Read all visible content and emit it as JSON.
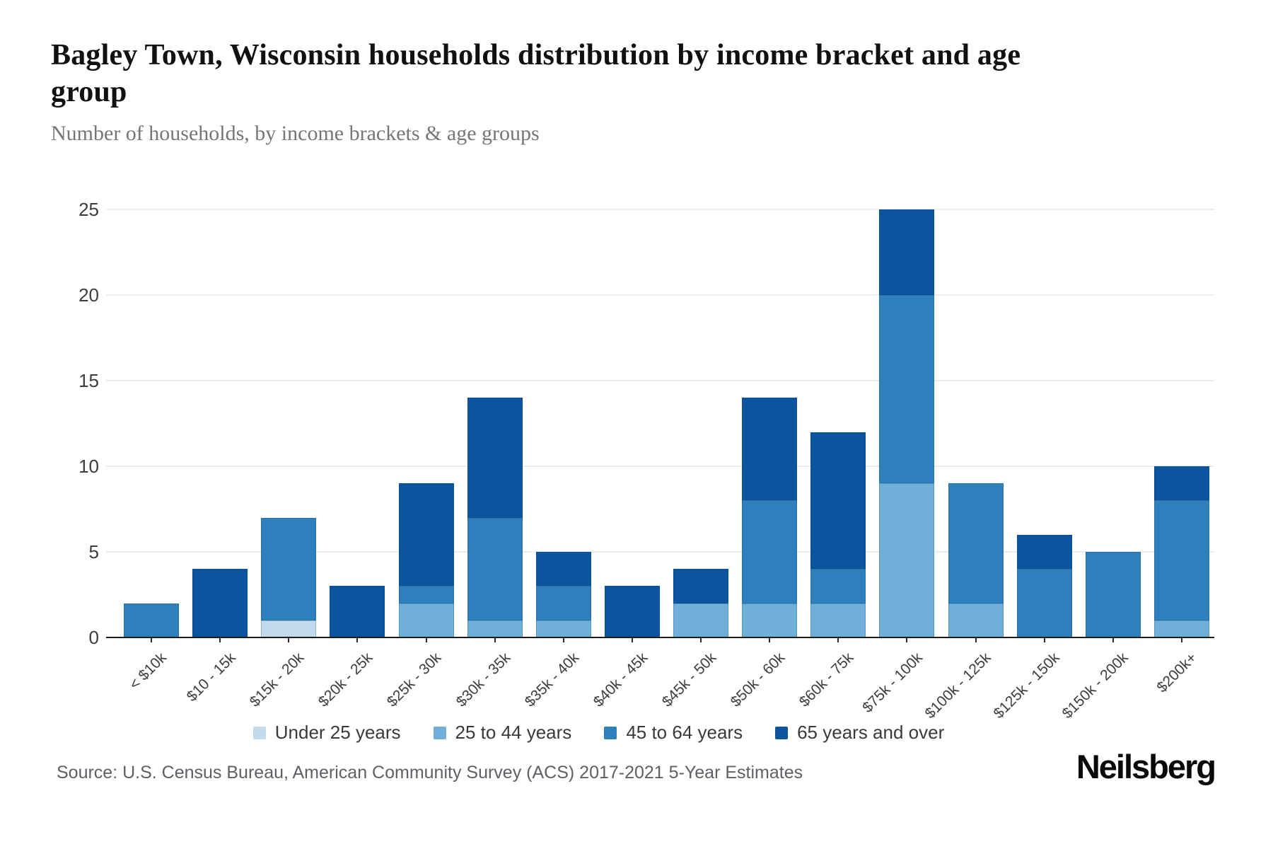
{
  "header": {
    "title": "Bagley Town, Wisconsin households distribution by income bracket and age group",
    "subtitle": "Number of households, by income brackets & age groups"
  },
  "chart_data": {
    "type": "bar",
    "stacked": true,
    "grid": true,
    "legend_position": "bottom",
    "ylim": [
      0,
      25
    ],
    "yticks": [
      0,
      5,
      10,
      15,
      20,
      25
    ],
    "categories": [
      "< $10k",
      "$10 - 15k",
      "$15k - 20k",
      "$20k - 25k",
      "$25k - 30k",
      "$30k - 35k",
      "$35k - 40k",
      "$40k - 45k",
      "$45k - 50k",
      "$50k - 60k",
      "$60k - 75k",
      "$75k - 100k",
      "$100k - 125k",
      "$125k - 150k",
      "$150k - 200k",
      "$200k+"
    ],
    "series": [
      {
        "name": "Under 25 years",
        "color": "#c3daec",
        "values": [
          0,
          0,
          1,
          0,
          0,
          0,
          0,
          0,
          0,
          0,
          0,
          0,
          0,
          0,
          0,
          0
        ]
      },
      {
        "name": "25 to 44 years",
        "color": "#6fafd8",
        "values": [
          0,
          0,
          0,
          0,
          2,
          1,
          1,
          0,
          2,
          2,
          2,
          9,
          2,
          0,
          0,
          1
        ]
      },
      {
        "name": "45 to 64 years",
        "color": "#2f7fbc",
        "values": [
          2,
          0,
          6,
          0,
          1,
          6,
          2,
          0,
          0,
          6,
          2,
          11,
          7,
          4,
          5,
          7
        ]
      },
      {
        "name": "65 years and over",
        "color": "#0c549e",
        "values": [
          0,
          4,
          0,
          3,
          6,
          7,
          2,
          3,
          2,
          6,
          8,
          5,
          0,
          2,
          0,
          2
        ]
      }
    ],
    "totals": [
      2,
      4,
      7,
      3,
      9,
      14,
      5,
      3,
      4,
      14,
      12,
      25,
      9,
      6,
      5,
      10
    ]
  },
  "footer": {
    "source": "Source: U.S. Census Bureau, American Community Survey (ACS) 2017-2021 5-Year Estimates",
    "brand": "Neilsberg"
  }
}
